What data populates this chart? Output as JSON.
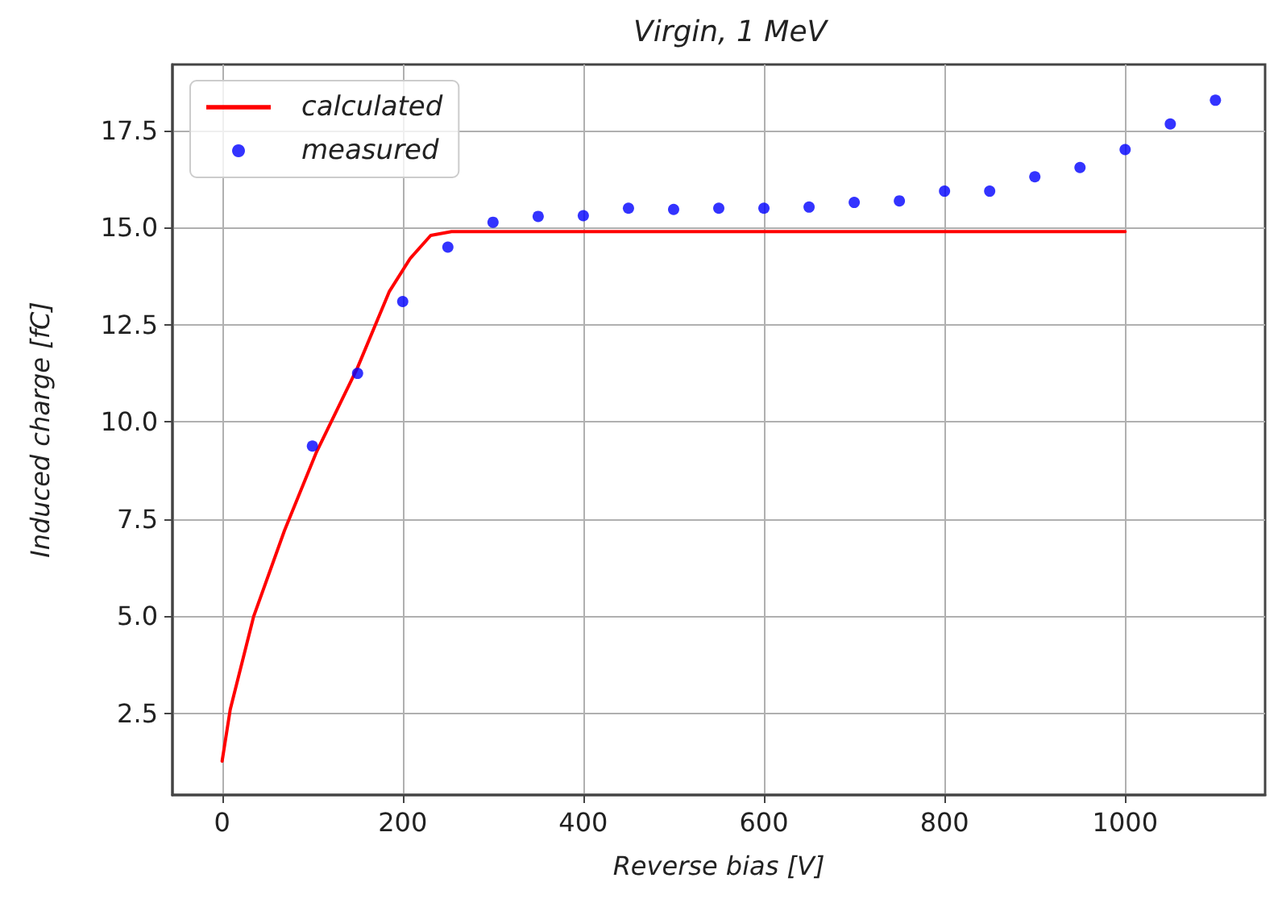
{
  "chart_data": {
    "type": "line",
    "title": "Virgin, 1 MeV",
    "xlabel": "Reverse bias [V]",
    "ylabel": "Induced charge [fC]",
    "xlim": [
      -55,
      1155
    ],
    "xticks": [
      0,
      200,
      400,
      600,
      800,
      1000
    ],
    "ylim": [
      0.4,
      19.2
    ],
    "yticks": [
      2.5,
      {
        "value": 5,
        "label": "5.0"
      },
      7.5,
      {
        "value": 10,
        "label": "10.0"
      },
      12.5,
      {
        "value": 15,
        "label": "15.0"
      },
      17.5
    ],
    "grid": true,
    "legend": "top left",
    "line_style": "solid",
    "series": [
      {
        "name": "calculated",
        "color": "#ff0000",
        "x": [
          0,
          9,
          35,
          69,
          104,
          150,
          185,
          208,
          231,
          254,
          300,
          500,
          700,
          1000
        ],
        "values": [
          1.27,
          2.6,
          5.0,
          7.2,
          9.2,
          11.4,
          13.35,
          14.2,
          14.8,
          14.9,
          14.9,
          14.9,
          14.9,
          14.9
        ]
      },
      {
        "name": "measured",
        "type": "scatter",
        "marker": "circle",
        "color": "#0000ff",
        "x": [
          100,
          150,
          200,
          250,
          300,
          350,
          400,
          450,
          500,
          550,
          600,
          650,
          700,
          750,
          800,
          850,
          900,
          950,
          1000,
          1050,
          1100
        ],
        "values": [
          9.38,
          11.25,
          13.1,
          14.5,
          15.14,
          15.29,
          15.31,
          15.5,
          15.47,
          15.5,
          15.5,
          15.53,
          15.65,
          15.69,
          15.94,
          15.94,
          16.31,
          16.55,
          17.01,
          17.67,
          18.28
        ]
      }
    ]
  }
}
